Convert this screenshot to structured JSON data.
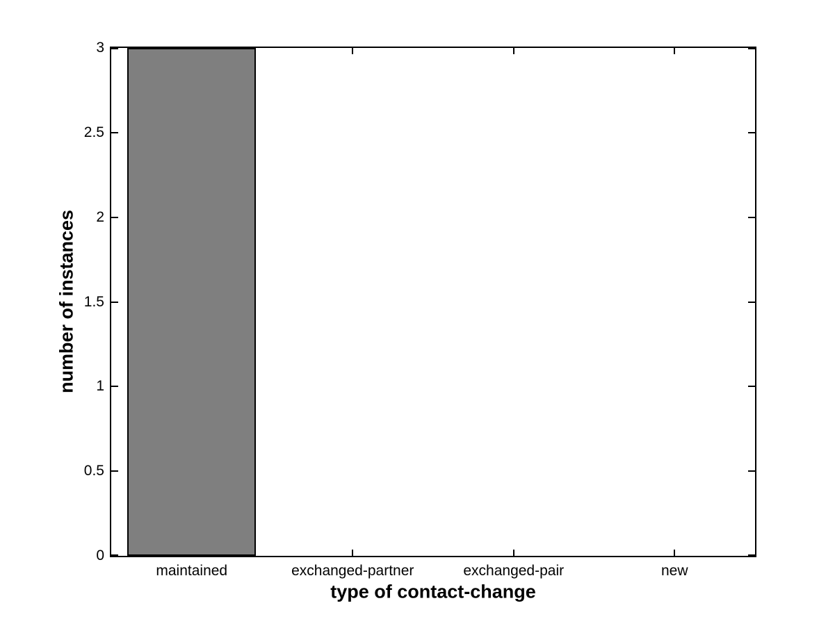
{
  "figure": {
    "background": "#ffffff",
    "axis_color": "#000000",
    "text_color": "#000000"
  },
  "chart_data": {
    "type": "bar",
    "title": "",
    "xlabel": "type of contact-change",
    "ylabel": "number of instances",
    "categories": [
      "maintained",
      "exchanged-partner",
      "exchanged-pair",
      "new"
    ],
    "values": [
      3,
      0,
      0,
      0
    ],
    "ylim": [
      0,
      3
    ],
    "yticks": [
      0,
      0.5,
      1,
      1.5,
      2,
      2.5,
      3
    ],
    "ytick_labels": [
      "0",
      "0.5",
      "1",
      "1.5",
      "2",
      "2.5",
      "3"
    ],
    "xlim_categories": 4,
    "bar_color": "#7f7f7f",
    "bar_edge_color": "#000000",
    "bar_width_fraction": 0.8,
    "grid": false,
    "legend": null,
    "tick_direction": "in",
    "box": true
  }
}
